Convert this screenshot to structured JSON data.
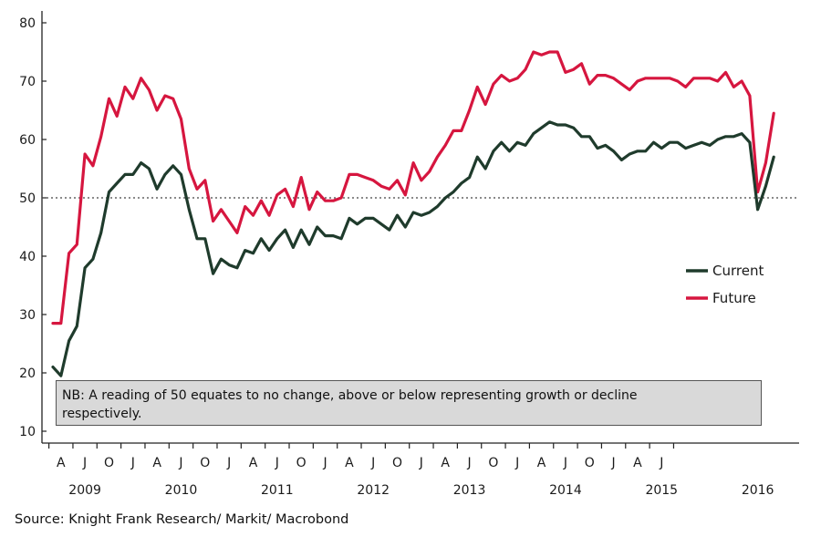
{
  "chart_data": {
    "type": "line",
    "title": "",
    "xlabel": "",
    "ylabel": "",
    "ylim": [
      10,
      80
    ],
    "y_ticks": [
      10,
      20,
      30,
      40,
      50,
      60,
      70,
      80
    ],
    "month_ticks": [
      "A",
      "J",
      "O",
      "J",
      "A",
      "J",
      "O",
      "J",
      "A",
      "J",
      "O",
      "J",
      "A",
      "J",
      "O",
      "J",
      "A",
      "J",
      "O",
      "J",
      "A",
      "J",
      "O",
      "J",
      "A",
      "J"
    ],
    "year_labels": [
      "2009",
      "2010",
      "2011",
      "2012",
      "2013",
      "2014",
      "2015",
      "2016"
    ],
    "reference_line": 50,
    "grid": false,
    "legend_position": "right",
    "x_start": "2009-03",
    "series": [
      {
        "name": "Current",
        "color": "#1f3b2c",
        "values": [
          21,
          19.5,
          25.5,
          28,
          38,
          39.5,
          44,
          51,
          52.5,
          54,
          54,
          56,
          55,
          51.5,
          54,
          55.5,
          54,
          48,
          43,
          43,
          37,
          39.5,
          38.5,
          38,
          41,
          40.5,
          43,
          41,
          43,
          44.5,
          41.5,
          44.5,
          42,
          45,
          43.5,
          43.5,
          43,
          46.5,
          45.5,
          46.5,
          46.5,
          45.5,
          44.5,
          47,
          45,
          47.5,
          47,
          47.5,
          48.5,
          50,
          51,
          52.5,
          53.5,
          57,
          55,
          58,
          59.5,
          58,
          59.5,
          59,
          61,
          62,
          63,
          62.5,
          62.5,
          62,
          60.5,
          60.5,
          58.5,
          59,
          58,
          56.5,
          57.5,
          58,
          58,
          59.5,
          58.5,
          59.5,
          59.5,
          58.5,
          59,
          59.5,
          59,
          60,
          60.5,
          60.5,
          61,
          59.5,
          48,
          52,
          57
        ]
      },
      {
        "name": "Future",
        "color": "#d6163f",
        "values": [
          28.5,
          28.5,
          40.5,
          42,
          57.5,
          55.5,
          60.5,
          67,
          64,
          69,
          67,
          70.5,
          68.5,
          65,
          67.5,
          67,
          63.5,
          55,
          51.5,
          53,
          46,
          48,
          46,
          44,
          48.5,
          47,
          49.5,
          47,
          50.5,
          51.5,
          48.5,
          53.5,
          48,
          51,
          49.5,
          49.5,
          50,
          54,
          54,
          53.5,
          53,
          52,
          51.5,
          53,
          50.5,
          56,
          53,
          54.5,
          57,
          59,
          61.5,
          61.5,
          65,
          69,
          66,
          69.5,
          71,
          70,
          70.5,
          72,
          75,
          74.5,
          75,
          75,
          71.5,
          72,
          73,
          69.5,
          71,
          71,
          70.5,
          69.5,
          68.5,
          70,
          70.5,
          70.5,
          70.5,
          70.5,
          70,
          69,
          70.5,
          70.5,
          70.5,
          70,
          71.5,
          69,
          70,
          67.5,
          51,
          56,
          64.5
        ]
      }
    ]
  },
  "note": {
    "line1": "NB: A reading of 50 equates to no change, above or below representing growth or decline",
    "line2": "respectively."
  },
  "source": "Source: Knight Frank Research/ Markit/ Macrobond"
}
